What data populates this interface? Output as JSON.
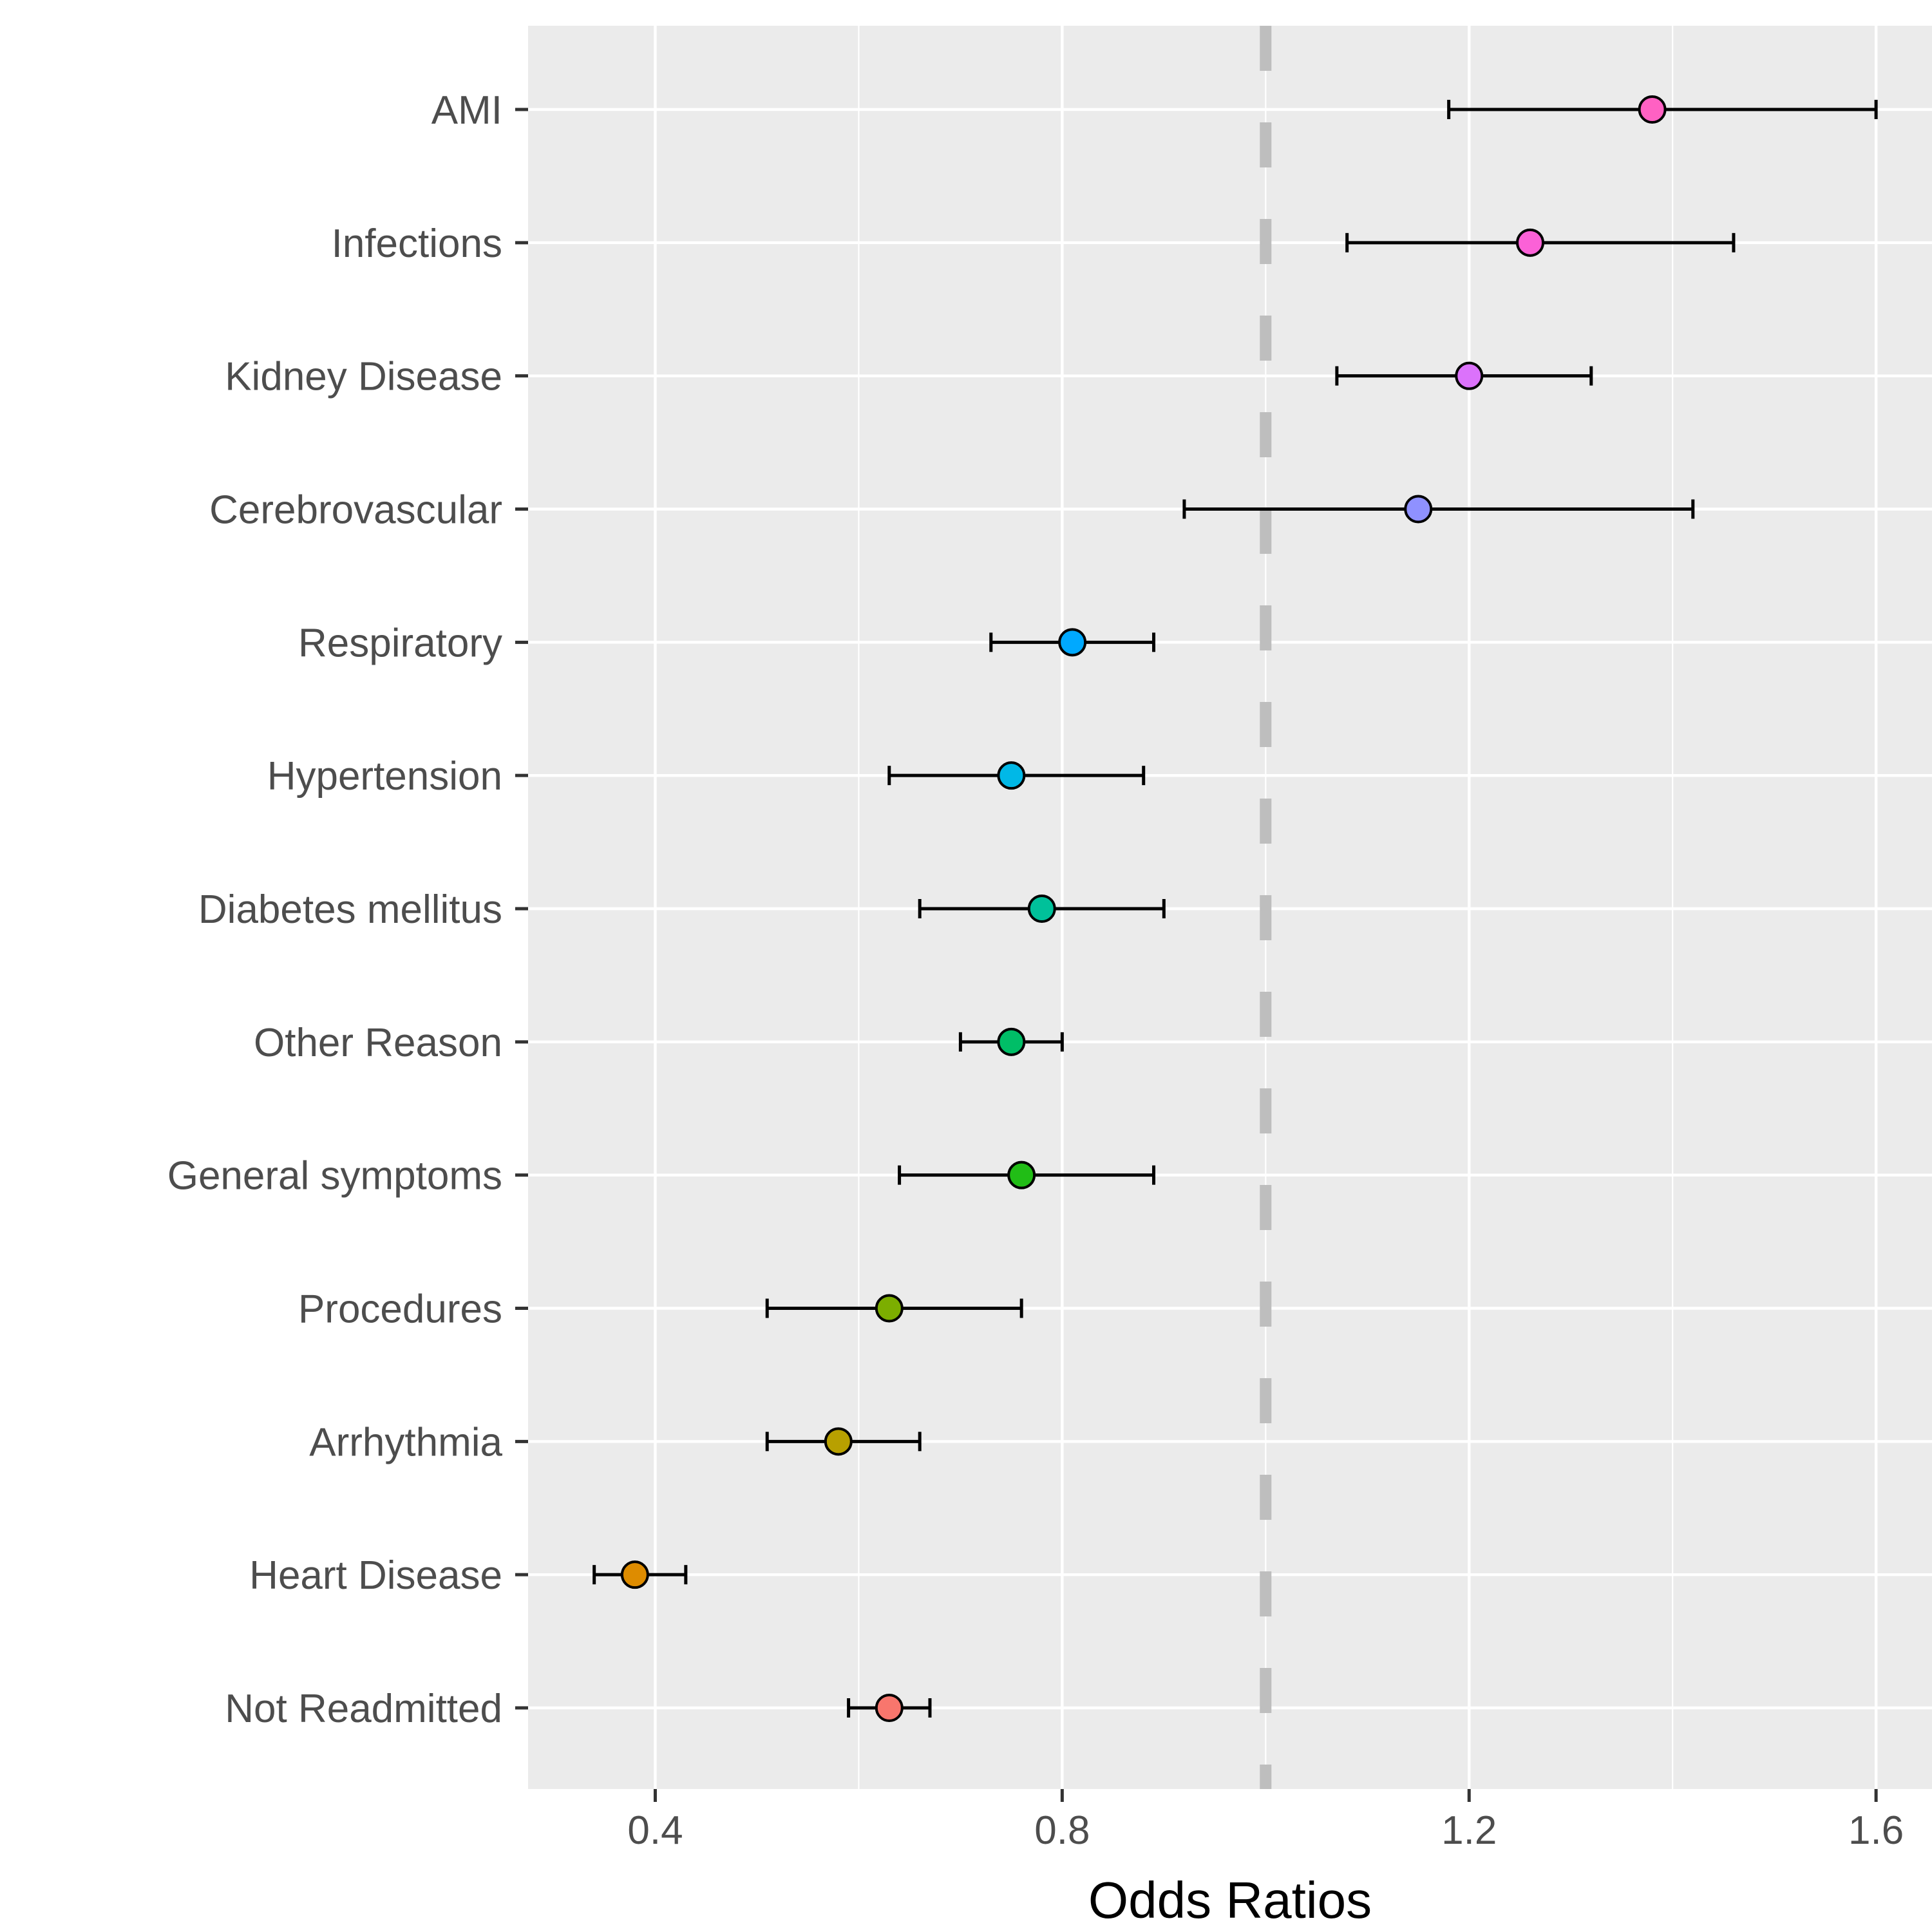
{
  "chart_data": {
    "type": "scatter",
    "subtype": "forest-plot",
    "title": "",
    "xlabel": "Odds Ratios",
    "ylabel": "",
    "xlim": [
      0.275,
      1.655
    ],
    "xticks": [
      0.4,
      0.8,
      1.2,
      1.6
    ],
    "xtick_labels": [
      "0.4",
      "0.8",
      "1.2",
      "1.6"
    ],
    "reference_line": 1.0,
    "grid": true,
    "legend": "none",
    "categories": [
      "AMI",
      "Infections",
      "Kidney Disease",
      "Cerebrovascular",
      "Respiratory",
      "Hypertension",
      "Diabetes mellitus",
      "Other Reason",
      "General symptoms",
      "Procedures",
      "Arrhythmia",
      "Heart Disease",
      "Not Readmitted"
    ],
    "estimates": [
      1.38,
      1.26,
      1.2,
      1.15,
      0.81,
      0.75,
      0.78,
      0.75,
      0.76,
      0.63,
      0.58,
      0.38,
      0.63
    ],
    "ci_lower": [
      1.18,
      1.08,
      1.07,
      0.92,
      0.73,
      0.63,
      0.66,
      0.7,
      0.64,
      0.51,
      0.51,
      0.34,
      0.59
    ],
    "ci_upper": [
      1.6,
      1.46,
      1.32,
      1.42,
      0.89,
      0.88,
      0.9,
      0.8,
      0.89,
      0.76,
      0.66,
      0.43,
      0.67
    ],
    "point_colors": [
      "#FF61C3",
      "#FB61D7",
      "#DB72FB",
      "#8F91FF",
      "#00A9FF",
      "#00B8E7",
      "#00C19A",
      "#00BE67",
      "#21BD16",
      "#7CAE00",
      "#B8A000",
      "#DE8C00",
      "#F8766D"
    ]
  },
  "colors": {
    "panel_background": "#EBEBEB",
    "grid_line": "#FFFFFF",
    "reference_line": "#BEBEBE",
    "error_bar": "#000000",
    "tick_text": "#4D4D4D"
  }
}
